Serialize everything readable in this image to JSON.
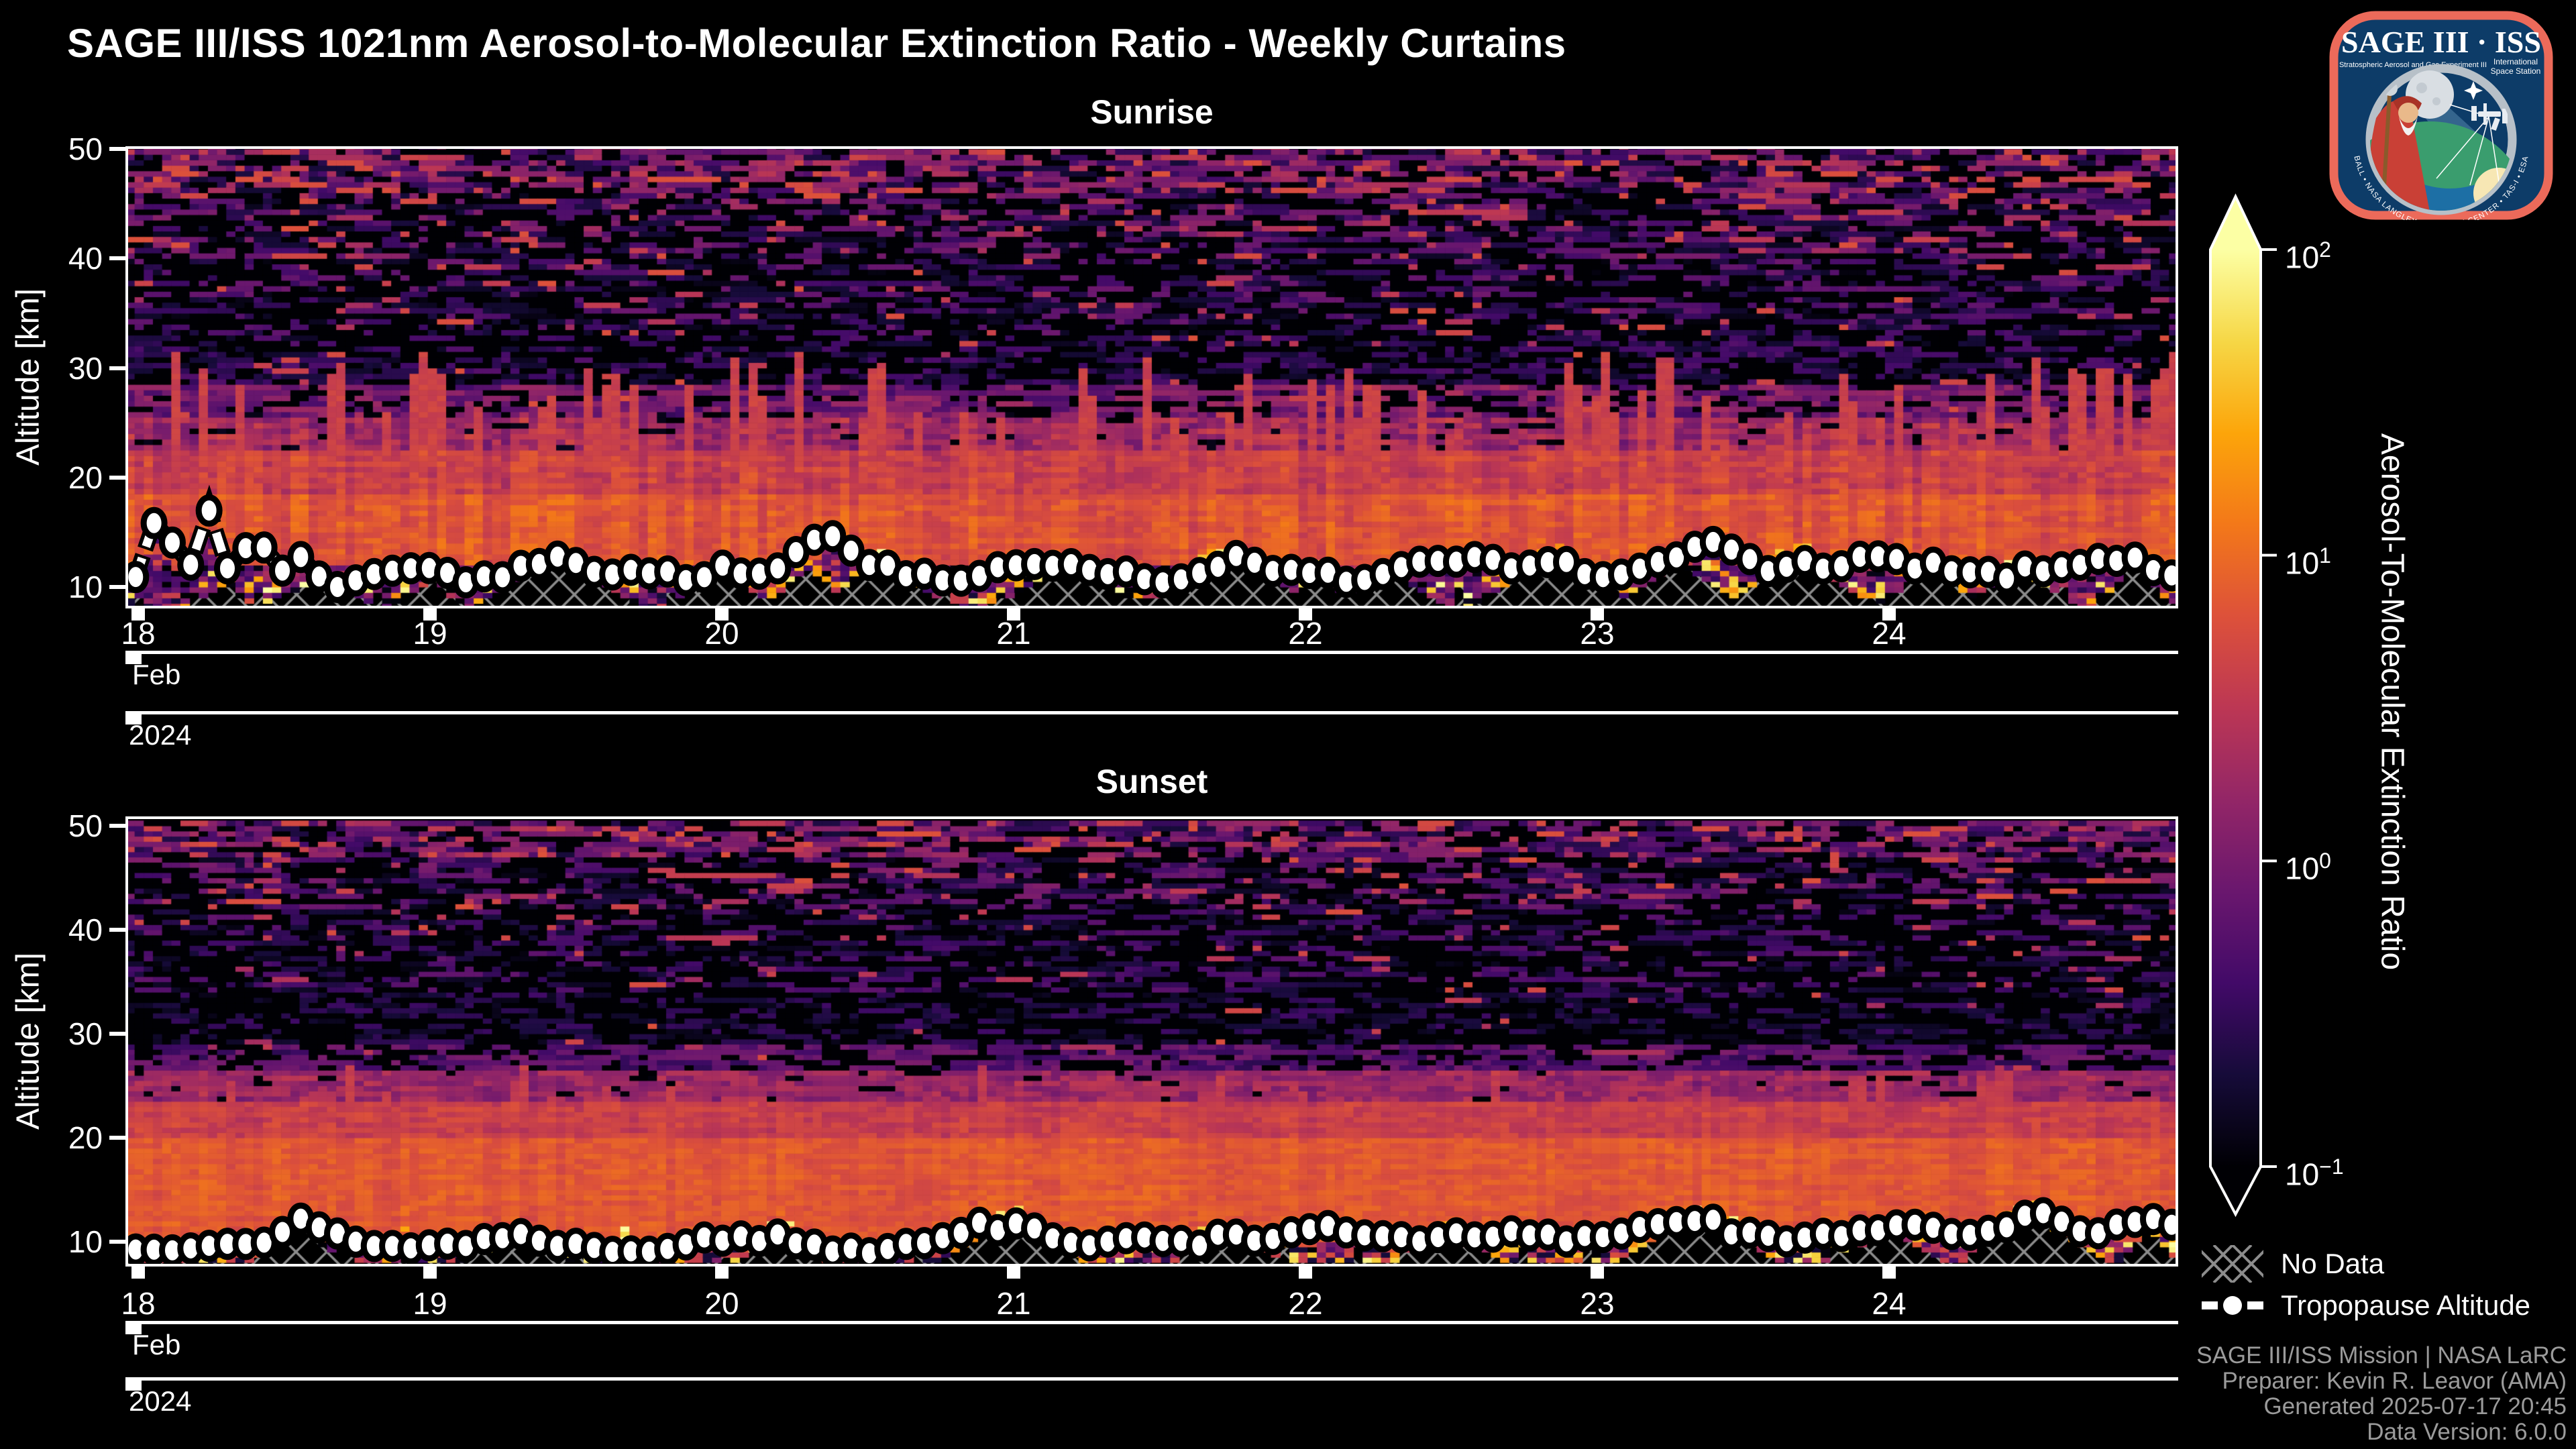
{
  "figure": {
    "title": "SAGE III/ISS 1021nm Aerosol-to-Molecular Extinction Ratio - Weekly Curtains",
    "background_color": "#000000"
  },
  "logo": {
    "title": "SAGE III · ISS",
    "subtitle": "Stratospheric Aerosol and Gas Experiment III",
    "iss_label_line1": "International",
    "iss_label_line2": "Space Station",
    "rim_text": "BALL • NASA LANGLEY RESEARCH CENTER • TAS-I • ESA",
    "border_color": "#ec6a5a",
    "background_color": "#0d3c68"
  },
  "colorbar": {
    "label": "Aerosol-To-Molecular Extinction Ratio",
    "scale": "log10",
    "vmin": 0.1,
    "vmax": 100,
    "extend": "both",
    "colormap": "inferno",
    "ticks": [
      {
        "base": "10",
        "exp": "2",
        "value": 100
      },
      {
        "base": "10",
        "exp": "1",
        "value": 10
      },
      {
        "base": "10",
        "exp": "0",
        "value": 1
      },
      {
        "base": "10",
        "exp": "−1",
        "value": 0.1
      }
    ],
    "stops": [
      [
        0.0,
        "#000004"
      ],
      [
        0.1,
        "#160b39"
      ],
      [
        0.2,
        "#420a68"
      ],
      [
        0.3,
        "#6a176e"
      ],
      [
        0.4,
        "#932667"
      ],
      [
        0.5,
        "#bc3754"
      ],
      [
        0.6,
        "#dd513a"
      ],
      [
        0.7,
        "#f37819"
      ],
      [
        0.8,
        "#fca50a"
      ],
      [
        0.9,
        "#f6d746"
      ],
      [
        1.0,
        "#fcffa4"
      ]
    ]
  },
  "legend": {
    "no_data": "No Data",
    "tropopause": "Tropopause Altitude"
  },
  "footer": {
    "lines": [
      "SAGE III/ISS Mission | NASA LaRC",
      "Preparer: Kevin R. Leavor (AMA)",
      "Generated 2025-07-17 20:45",
      "Data Version: 6.0.0"
    ]
  },
  "chart_data": [
    {
      "type": "heatmap",
      "title": "Sunrise",
      "ylabel": "Altitude [km]",
      "y_ticks": [
        10,
        20,
        30,
        40,
        50
      ],
      "x_ticks": [
        18,
        19,
        20,
        21,
        22,
        23,
        24
      ],
      "month": "Feb",
      "year": "2024",
      "x_range_days": [
        17.96,
        25.0
      ],
      "alt_range_km": [
        8.0,
        50.25
      ],
      "alt_step_km": 0.5,
      "n_profiles": 224,
      "value_scale": {
        "type": "log10",
        "min": 0.1,
        "max": 100
      },
      "column_jitter": 0.15,
      "bands": [
        {
          "alt": [
            8.0,
            12.0
          ],
          "base": 0.1,
          "noise": 0.5,
          "black": 0.25,
          "speckle": 0.04
        },
        {
          "alt": [
            12.0,
            18.5
          ],
          "base": 0.82,
          "noise": 0.15,
          "black": 0.0,
          "speckle": 0.0
        },
        {
          "alt": [
            18.5,
            22.5
          ],
          "base": 0.6,
          "noise": 0.18,
          "black": 0.0,
          "speckle": 0.0
        },
        {
          "alt": [
            22.5,
            25.5
          ],
          "base": 0.3,
          "noise": 0.28,
          "black": 0.08,
          "speckle": 0.0
        },
        {
          "alt": [
            25.5,
            28.5
          ],
          "base": -0.05,
          "noise": 0.35,
          "black": 0.28,
          "speckle": 0.02
        },
        {
          "alt": [
            28.5,
            33.0
          ],
          "base": -0.55,
          "noise": 0.3,
          "black": 0.5,
          "speckle": 0.02
        },
        {
          "alt": [
            33.0,
            40.0
          ],
          "base": -0.5,
          "noise": 0.45,
          "black": 0.52,
          "speckle": 0.05
        },
        {
          "alt": [
            40.0,
            46.0
          ],
          "base": -0.35,
          "noise": 0.5,
          "black": 0.45,
          "speckle": 0.1
        },
        {
          "alt": [
            46.0,
            50.5
          ],
          "base": -0.2,
          "noise": 0.55,
          "black": 0.32,
          "speckle": 0.17
        }
      ],
      "plumes": {
        "prob": 0.3,
        "top_range": [
          25.0,
          31.5
        ],
        "value": 0.62
      },
      "tropopause_km": [
        [
          18.0,
          11.3
        ],
        [
          18.07,
          17.6
        ],
        [
          18.16,
          10.1
        ],
        [
          18.24,
          17.2
        ],
        [
          18.32,
          10.6
        ],
        [
          18.4,
          15.5
        ],
        [
          18.48,
          11.2
        ],
        [
          18.56,
          12.6
        ],
        [
          18.64,
          10.2
        ],
        [
          18.75,
          10.4
        ],
        [
          18.85,
          11.7
        ],
        [
          19.0,
          11.9
        ],
        [
          19.15,
          10.3
        ],
        [
          19.3,
          11.5
        ],
        [
          19.45,
          13.2
        ],
        [
          19.6,
          11.0
        ],
        [
          19.75,
          11.6
        ],
        [
          19.9,
          10.4
        ],
        [
          20.05,
          10.8
        ],
        [
          20.2,
          11.4
        ],
        [
          20.35,
          15.6
        ],
        [
          20.5,
          12.1
        ],
        [
          20.65,
          11.2
        ],
        [
          20.8,
          10.5
        ],
        [
          21.0,
          11.8
        ],
        [
          21.2,
          12.2
        ],
        [
          21.4,
          11.0
        ],
        [
          21.6,
          10.4
        ],
        [
          21.8,
          11.6
        ],
        [
          22.0,
          11.2
        ],
        [
          22.2,
          10.6
        ],
        [
          22.4,
          12.0
        ],
        [
          22.6,
          12.4
        ],
        [
          22.8,
          11.0
        ],
        [
          23.0,
          10.6
        ],
        [
          23.2,
          11.8
        ],
        [
          23.4,
          14.2
        ],
        [
          23.6,
          11.2
        ],
        [
          23.8,
          12.2
        ],
        [
          24.0,
          12.6
        ],
        [
          24.2,
          11.4
        ],
        [
          24.4,
          10.8
        ],
        [
          24.6,
          11.6
        ],
        [
          24.8,
          12.8
        ],
        [
          24.95,
          11.0
        ]
      ],
      "no_data_mounds": [
        {
          "day": 18.3,
          "half_width": 0.12,
          "top_km": 10.2
        },
        {
          "day": 18.62,
          "half_width": 0.2,
          "top_km": 10.8
        },
        {
          "day": 19.0,
          "half_width": 0.15,
          "top_km": 10.5
        },
        {
          "day": 19.45,
          "half_width": 0.3,
          "top_km": 12.8
        },
        {
          "day": 20.0,
          "half_width": 0.2,
          "top_km": 11.5
        },
        {
          "day": 20.3,
          "half_width": 0.18,
          "top_km": 11.6
        },
        {
          "day": 20.55,
          "half_width": 0.25,
          "top_km": 12.3
        },
        {
          "day": 21.2,
          "half_width": 0.3,
          "top_km": 11.8
        },
        {
          "day": 21.75,
          "half_width": 0.35,
          "top_km": 12.5
        },
        {
          "day": 22.05,
          "half_width": 0.15,
          "top_km": 10.8
        },
        {
          "day": 22.3,
          "half_width": 0.2,
          "top_km": 11.2
        },
        {
          "day": 22.85,
          "half_width": 0.3,
          "top_km": 12.6
        },
        {
          "day": 23.3,
          "half_width": 0.25,
          "top_km": 12.0
        },
        {
          "day": 23.7,
          "half_width": 0.3,
          "top_km": 12.4
        },
        {
          "day": 24.15,
          "half_width": 0.2,
          "top_km": 11.8
        },
        {
          "day": 24.45,
          "half_width": 0.2,
          "top_km": 11.4
        },
        {
          "day": 24.85,
          "half_width": 0.15,
          "top_km": 11.9
        }
      ],
      "texture_seed": 42,
      "marker_seed": 7,
      "n_markers": 112,
      "series": [
        {
          "name": "Tropopause Altitude",
          "style": "white circle markers with white dashed line"
        },
        {
          "name": "No Data",
          "style": "gray cross-hatch over black"
        }
      ]
    },
    {
      "type": "heatmap",
      "title": "Sunset",
      "ylabel": "Altitude [km]",
      "y_ticks": [
        10,
        20,
        30,
        40,
        50
      ],
      "x_ticks": [
        18,
        19,
        20,
        21,
        22,
        23,
        24
      ],
      "month": "Feb",
      "year": "2024",
      "x_range_days": [
        17.96,
        25.0
      ],
      "alt_range_km": [
        8.0,
        50.25
      ],
      "alt_step_km": 0.5,
      "n_profiles": 224,
      "value_scale": {
        "type": "log10",
        "min": 0.1,
        "max": 100
      },
      "column_jitter": 0.08,
      "bands": [
        {
          "alt": [
            8.0,
            10.0
          ],
          "base": 0.55,
          "noise": 0.35,
          "black": 0.12,
          "speckle": 0.0
        },
        {
          "alt": [
            10.0,
            20.0
          ],
          "base": 0.85,
          "noise": 0.12,
          "black": 0.0,
          "speckle": 0.0
        },
        {
          "alt": [
            20.0,
            23.5
          ],
          "base": 0.6,
          "noise": 0.15,
          "black": 0.0,
          "speckle": 0.0
        },
        {
          "alt": [
            23.5,
            26.5
          ],
          "base": 0.25,
          "noise": 0.25,
          "black": 0.05,
          "speckle": 0.0
        },
        {
          "alt": [
            26.5,
            29.0
          ],
          "base": -0.25,
          "noise": 0.3,
          "black": 0.3,
          "speckle": 0.01
        },
        {
          "alt": [
            29.0,
            34.0
          ],
          "base": -0.65,
          "noise": 0.25,
          "black": 0.55,
          "speckle": 0.01
        },
        {
          "alt": [
            34.0,
            42.0
          ],
          "base": -0.55,
          "noise": 0.4,
          "black": 0.55,
          "speckle": 0.04
        },
        {
          "alt": [
            42.0,
            47.0
          ],
          "base": -0.4,
          "noise": 0.5,
          "black": 0.45,
          "speckle": 0.08
        },
        {
          "alt": [
            47.0,
            50.5
          ],
          "base": -0.2,
          "noise": 0.5,
          "black": 0.3,
          "speckle": 0.14
        }
      ],
      "plumes": {
        "prob": 0.06,
        "top_range": [
          24.0,
          27.0
        ],
        "value": 0.55
      },
      "tropopause_km": [
        [
          18.0,
          9.2
        ],
        [
          18.15,
          9.6
        ],
        [
          18.3,
          10.2
        ],
        [
          18.45,
          10.0
        ],
        [
          18.55,
          12.0
        ],
        [
          18.7,
          10.4
        ],
        [
          18.9,
          9.4
        ],
        [
          19.1,
          9.8
        ],
        [
          19.3,
          10.6
        ],
        [
          19.5,
          9.6
        ],
        [
          19.7,
          9.2
        ],
        [
          19.9,
          10.0
        ],
        [
          20.1,
          10.4
        ],
        [
          20.3,
          9.6
        ],
        [
          20.5,
          9.2
        ],
        [
          20.7,
          10.2
        ],
        [
          20.9,
          11.6
        ],
        [
          21.1,
          10.8
        ],
        [
          21.3,
          9.6
        ],
        [
          21.5,
          10.4
        ],
        [
          21.7,
          9.8
        ],
        [
          21.9,
          10.6
        ],
        [
          22.1,
          11.2
        ],
        [
          22.3,
          10.2
        ],
        [
          22.5,
          9.6
        ],
        [
          22.7,
          10.8
        ],
        [
          22.9,
          10.2
        ],
        [
          23.1,
          11.0
        ],
        [
          23.3,
          12.4
        ],
        [
          23.5,
          10.6
        ],
        [
          23.7,
          10.0
        ],
        [
          23.9,
          11.2
        ],
        [
          24.1,
          11.8
        ],
        [
          24.3,
          10.4
        ],
        [
          24.5,
          12.6
        ],
        [
          24.7,
          11.0
        ],
        [
          24.85,
          12.2
        ],
        [
          25.0,
          11.4
        ]
      ],
      "no_data_mounds": [
        {
          "day": 18.55,
          "half_width": 0.15,
          "top_km": 11.6
        },
        {
          "day": 19.3,
          "half_width": 0.2,
          "top_km": 10.4
        },
        {
          "day": 20.2,
          "half_width": 0.15,
          "top_km": 10.6
        },
        {
          "day": 21.0,
          "half_width": 0.25,
          "top_km": 11.8
        },
        {
          "day": 21.75,
          "half_width": 0.2,
          "top_km": 10.8
        },
        {
          "day": 22.5,
          "half_width": 0.2,
          "top_km": 10.5
        },
        {
          "day": 23.35,
          "half_width": 0.3,
          "top_km": 12.2
        },
        {
          "day": 24.0,
          "half_width": 0.2,
          "top_km": 11.0
        },
        {
          "day": 24.5,
          "half_width": 0.25,
          "top_km": 12.4
        },
        {
          "day": 24.9,
          "half_width": 0.1,
          "top_km": 11.5
        }
      ],
      "texture_seed": 77,
      "marker_seed": 13,
      "n_markers": 112,
      "series": [
        {
          "name": "Tropopause Altitude",
          "style": "white circle markers with white dashed line"
        },
        {
          "name": "No Data",
          "style": "gray cross-hatch over black"
        }
      ]
    }
  ]
}
